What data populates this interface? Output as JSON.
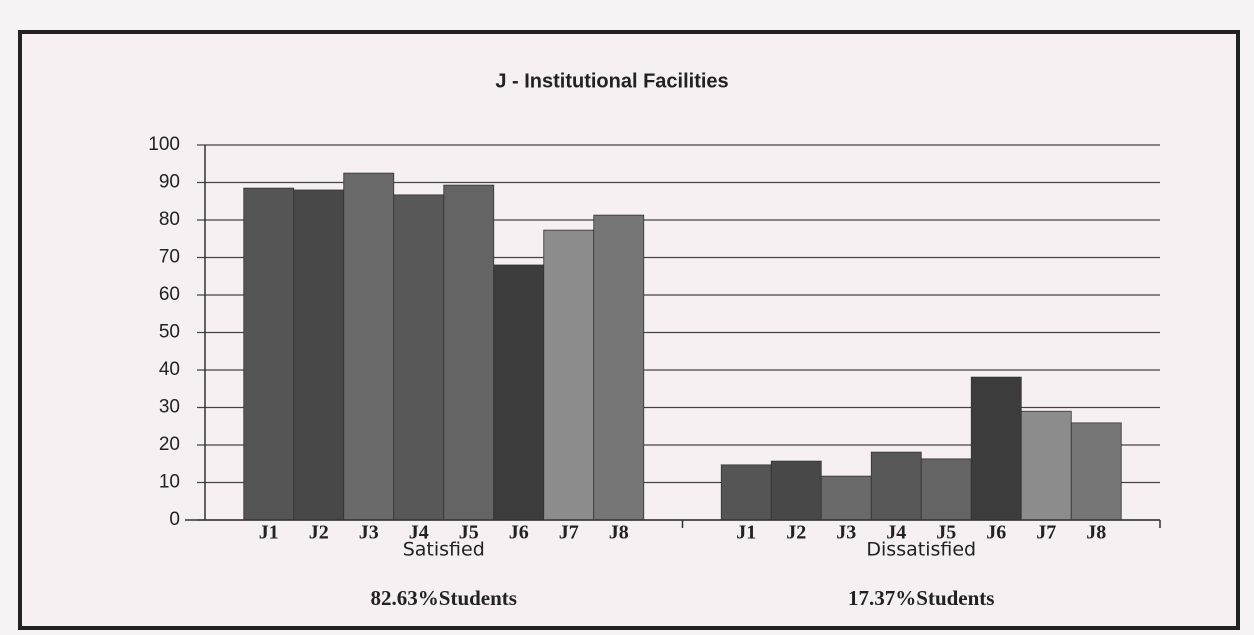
{
  "chart_data": {
    "type": "bar",
    "title": "J - Institutional Facilities",
    "categories": [
      "Satisfied",
      "Dissatisfied"
    ],
    "annotations": [
      "82.63%Students",
      "17.37%Students"
    ],
    "series": [
      {
        "name": "J1",
        "color": "#555555",
        "values": [
          88.5,
          14.7
        ]
      },
      {
        "name": "J2",
        "color": "#484848",
        "values": [
          88,
          15.7
        ]
      },
      {
        "name": "J3",
        "color": "#6a6a6a",
        "values": [
          92.5,
          11.7
        ]
      },
      {
        "name": "J4",
        "color": "#585858",
        "values": [
          86.7,
          18.1
        ]
      },
      {
        "name": "J5",
        "color": "#646464",
        "values": [
          89.3,
          16.3
        ]
      },
      {
        "name": "J6",
        "color": "#3c3c3c",
        "values": [
          68,
          38.1
        ]
      },
      {
        "name": "J7",
        "color": "#8c8c8c",
        "values": [
          77.3,
          29
        ]
      },
      {
        "name": "J8",
        "color": "#767676",
        "values": [
          81.3,
          25.9
        ]
      }
    ],
    "ylim": [
      0,
      100
    ],
    "yticks": [
      0,
      10,
      20,
      30,
      40,
      50,
      60,
      70,
      80,
      90,
      100
    ],
    "grid": true
  }
}
